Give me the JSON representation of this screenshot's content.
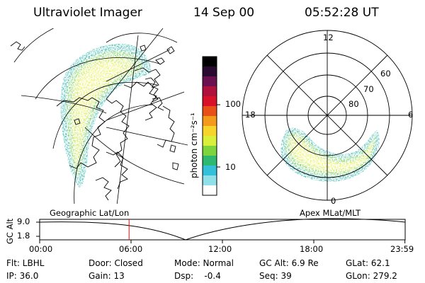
{
  "header": {
    "title": "Ultraviolet Imager",
    "date": "14 Sep 00",
    "time": "05:52:28 UT"
  },
  "left_panel": {
    "label": "Geographic Lat/Lon"
  },
  "right_panel": {
    "label": "Apex MLat/MLT",
    "mlt_labels": {
      "top": "12",
      "left": "18",
      "right": "6",
      "bottom": "0"
    },
    "lat_labels": [
      "60",
      "70",
      "80"
    ]
  },
  "colorbar": {
    "label": "photon cm⁻²s⁻¹",
    "ticks": [
      "100",
      "10"
    ],
    "colors": [
      "#ffffff",
      "#8fe0e8",
      "#34c0d8",
      "#2fb870",
      "#7ed43c",
      "#d8f03a",
      "#f6d42a",
      "#f39a1c",
      "#e8501a",
      "#d8102a",
      "#b0103c",
      "#6a1050",
      "#2a0a30",
      "#000000"
    ]
  },
  "altitude_plot": {
    "axis_label": "GC Alt",
    "y_ticks": [
      "9.0",
      "1.8"
    ],
    "x_ticks": [
      "00:00",
      "06:00",
      "12:00",
      "18:00",
      "23:59"
    ],
    "current_time_hours": 5.87,
    "marker_color": "#ff0000"
  },
  "status": {
    "filter": "Flt: LBHL",
    "door": "Door: Closed",
    "mode": "Mode: Normal",
    "gc_alt": "GC Alt: 6.9 Re",
    "glat": "GLat:  62.1",
    "ip": "IP: 36.0",
    "gain": "Gain: 13",
    "dsp": "Dsp:    -0.4",
    "seq": "Seq: 39",
    "glon": "GLon: 279.2"
  }
}
